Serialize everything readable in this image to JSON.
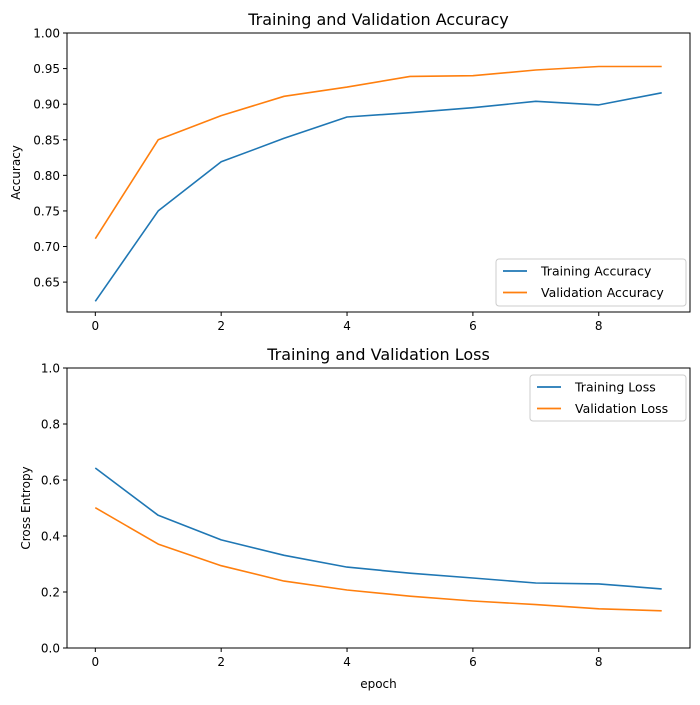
{
  "chart_data": [
    {
      "type": "line",
      "title": "Training and Validation Accuracy",
      "xlabel": "",
      "ylabel": "Accuracy",
      "x": [
        0,
        1,
        2,
        3,
        4,
        5,
        6,
        7,
        8,
        9
      ],
      "xlim": [
        -0.45,
        9.45
      ],
      "ylim": [
        0.608,
        1.0
      ],
      "xticks": [
        0,
        2,
        4,
        6,
        8
      ],
      "yticks": [
        "0.65",
        "0.70",
        "0.75",
        "0.80",
        "0.85",
        "0.90",
        "0.95",
        "1.00"
      ],
      "legend_position": "lower right",
      "grid": false,
      "series": [
        {
          "name": "Training Accuracy",
          "color": "#1f77b4",
          "values": [
            0.623,
            0.75,
            0.819,
            0.852,
            0.882,
            0.888,
            0.895,
            0.904,
            0.899,
            0.916
          ]
        },
        {
          "name": "Validation Accuracy",
          "color": "#ff7f0e",
          "values": [
            0.711,
            0.85,
            0.884,
            0.911,
            0.924,
            0.939,
            0.94,
            0.948,
            0.953,
            0.953
          ]
        }
      ]
    },
    {
      "type": "line",
      "title": "Training and Validation Loss",
      "xlabel": "epoch",
      "ylabel": "Cross Entropy",
      "x": [
        0,
        1,
        2,
        3,
        4,
        5,
        6,
        7,
        8,
        9
      ],
      "xlim": [
        -0.45,
        9.45
      ],
      "ylim": [
        0.0,
        1.0
      ],
      "xticks": [
        0,
        2,
        4,
        6,
        8
      ],
      "yticks": [
        "0.0",
        "0.2",
        "0.4",
        "0.6",
        "0.8",
        "1.0"
      ],
      "legend_position": "upper right",
      "grid": false,
      "series": [
        {
          "name": "Training Loss",
          "color": "#1f77b4",
          "values": [
            0.643,
            0.474,
            0.386,
            0.331,
            0.289,
            0.267,
            0.25,
            0.232,
            0.229,
            0.211
          ]
        },
        {
          "name": "Validation Loss",
          "color": "#ff7f0e",
          "values": [
            0.501,
            0.371,
            0.294,
            0.239,
            0.207,
            0.185,
            0.168,
            0.155,
            0.14,
            0.133
          ]
        }
      ]
    }
  ]
}
